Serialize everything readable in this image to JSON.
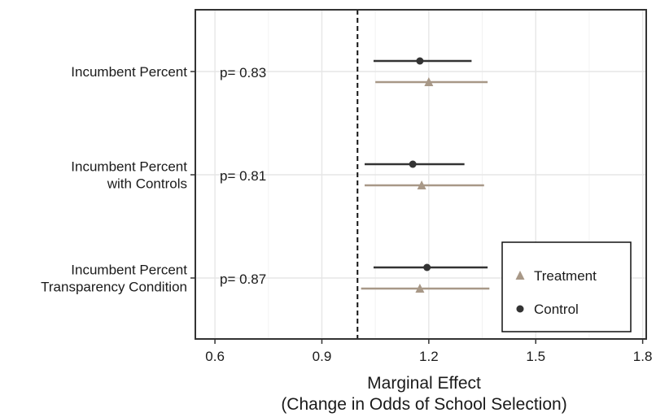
{
  "chart_data": {
    "type": "scatter",
    "subtype": "forest-plot-horizontal",
    "xlabel": "Marginal Effect",
    "xlabel_sub": "(Change in Odds of School Selection)",
    "ylabel": "",
    "xlim": [
      0.545,
      1.81
    ],
    "x_ticks": [
      "0.6",
      "0.9",
      "1.2",
      "1.5",
      "1.8"
    ],
    "reference_line": 1.0,
    "grid": true,
    "legend_position": "bottom-right",
    "categories": [
      {
        "lines": [
          "Incumbent Percent"
        ],
        "p_label": "p= 0.83"
      },
      {
        "lines": [
          "Incumbent Percent",
          "with Controls"
        ],
        "p_label": "p= 0.81"
      },
      {
        "lines": [
          "Incumbent Percent",
          "Transparency Condition"
        ],
        "p_label": "p= 0.87"
      }
    ],
    "series": [
      {
        "name": "Control",
        "marker": "circle",
        "color": "#333333",
        "points": [
          {
            "estimate": 1.175,
            "low": 1.045,
            "high": 1.32
          },
          {
            "estimate": 1.155,
            "low": 1.02,
            "high": 1.3
          },
          {
            "estimate": 1.195,
            "low": 1.045,
            "high": 1.365
          }
        ]
      },
      {
        "name": "Treatment",
        "marker": "triangle",
        "color": "#a89887",
        "points": [
          {
            "estimate": 1.2,
            "low": 1.05,
            "high": 1.365
          },
          {
            "estimate": 1.18,
            "low": 1.02,
            "high": 1.355
          },
          {
            "estimate": 1.175,
            "low": 1.01,
            "high": 1.37
          }
        ]
      }
    ],
    "legend_order": [
      "Treatment",
      "Control"
    ]
  }
}
